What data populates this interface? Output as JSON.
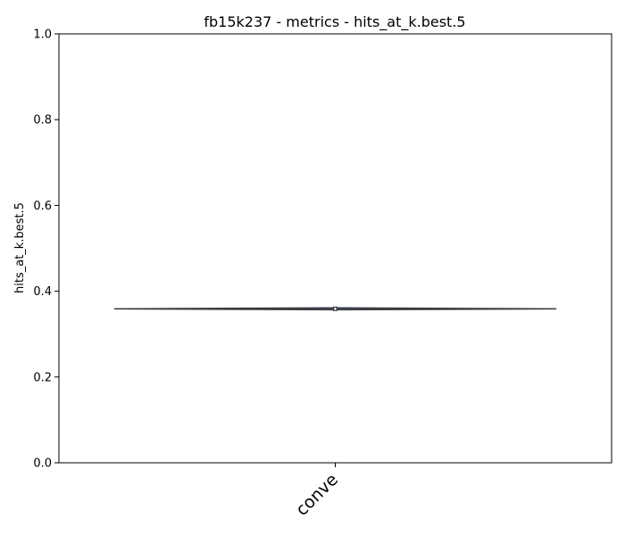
{
  "chart_data": {
    "type": "violin",
    "title": "fb15k237 - metrics - hits_at_k.best.5",
    "xlabel": "",
    "ylabel": "hits_at_k.best.5",
    "ylim": [
      0,
      1
    ],
    "yticks": [
      0.0,
      0.2,
      0.4,
      0.6,
      0.8,
      1.0
    ],
    "ytick_labels": [
      "0.0",
      "0.2",
      "0.4",
      "0.6",
      "0.8",
      "1.0"
    ],
    "categories": [
      "conve"
    ],
    "series": [
      {
        "values_min": 0.356,
        "values_max": 0.362,
        "median": 0.359,
        "q1": 0.357,
        "q3": 0.361
      }
    ],
    "colors": {
      "violin_fill": "#3b5b8c",
      "violin_edge": "#3a3a3a",
      "box": "#3a3a3a",
      "median": "#ffffff"
    },
    "grid": false,
    "legend": "none"
  }
}
